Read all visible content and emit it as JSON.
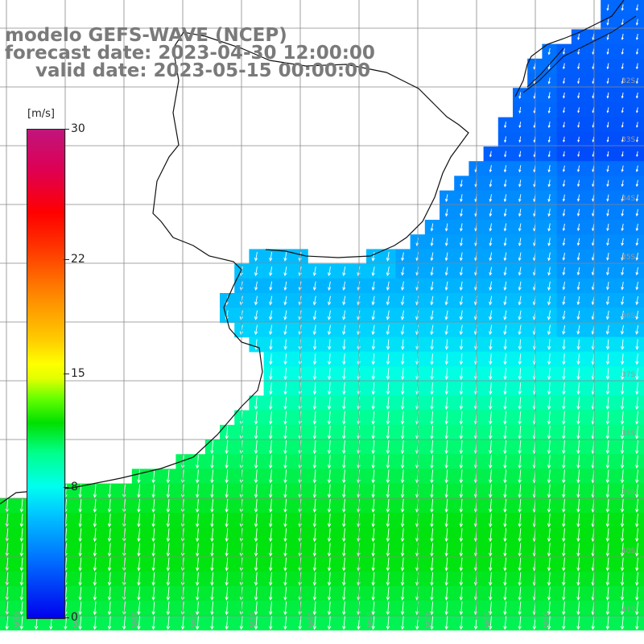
{
  "title": {
    "line1": "modelo GEFS-WAVE (NCEP)",
    "line2": "forecast date: 2023-04-30 12:00:00",
    "line3": "valid date: 2023-05-15 00:00:00"
  },
  "legend": {
    "unit": "[m/s]",
    "min": 0,
    "max": 30,
    "ticks": [
      {
        "value": 30,
        "label": "30"
      },
      {
        "value": 22,
        "label": "22"
      },
      {
        "value": 15,
        "label": "15"
      },
      {
        "value": 8,
        "label": "8"
      },
      {
        "value": 0,
        "label": "0"
      }
    ]
  },
  "axes": {
    "lat_labels": [
      "32S",
      "33S",
      "34S",
      "35S",
      "36S",
      "37S",
      "38S",
      "39S",
      "40S",
      "41S"
    ],
    "lon_labels": [
      "61W",
      "60W",
      "59W",
      "58W",
      "57W",
      "56W",
      "55W",
      "54W",
      "53W",
      "52W"
    ]
  },
  "colors": {
    "land": "#ffffff",
    "grid": "#9a9a9a",
    "coast": "#111111",
    "arrow": "#ffffff"
  }
}
